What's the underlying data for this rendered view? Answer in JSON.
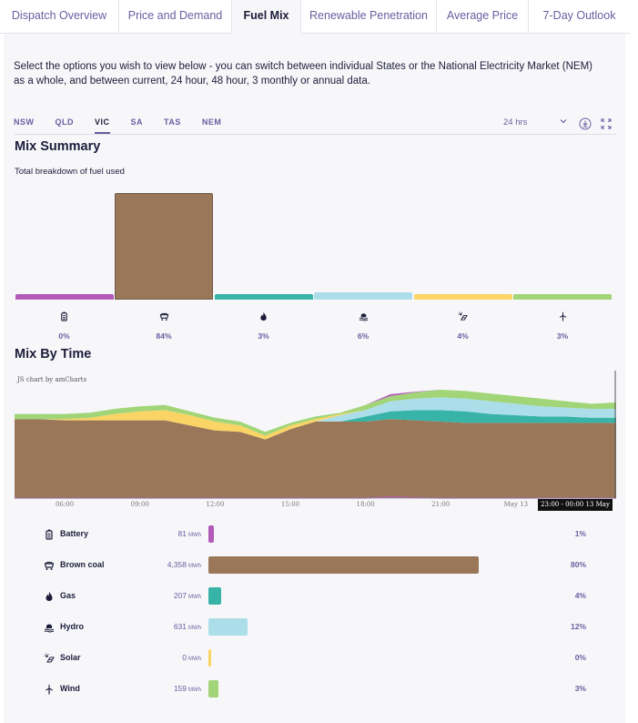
{
  "tabs": [
    {
      "label": "Dispatch Overview",
      "active": false
    },
    {
      "label": "Price and Demand",
      "active": false
    },
    {
      "label": "Fuel Mix",
      "active": true
    },
    {
      "label": "Renewable Penetration",
      "active": false
    },
    {
      "label": "Average Price",
      "active": false
    },
    {
      "label": "7-Day Outlook",
      "active": false
    }
  ],
  "intro": "Select the options you wish to view below - you can switch between individual States or the National Electricity Market (NEM) as a whole, and between current, 24 hour, 48 hour, 3 monthly or annual data.",
  "states": [
    {
      "label": "NSW",
      "active": false
    },
    {
      "label": "QLD",
      "active": false
    },
    {
      "label": "VIC",
      "active": true
    },
    {
      "label": "SA",
      "active": false
    },
    {
      "label": "TAS",
      "active": false
    },
    {
      "label": "NEM",
      "active": false
    }
  ],
  "range": {
    "selected": "24 hrs",
    "chevron_icon": "chevron-down-icon"
  },
  "toolbar": {
    "download_icon": "download-icon",
    "expand_icon": "expand-icon"
  },
  "mix_summary": {
    "title": "Mix Summary",
    "subtitle": "Total breakdown of fuel used",
    "colors": [
      "#b25bb8",
      "#9a7758",
      "#38b3a7",
      "#acdeea",
      "#fad464",
      "#a1d577"
    ],
    "chart_data": {
      "type": "bar",
      "categories": [
        "Battery",
        "Brown coal",
        "Gas",
        "Hydro",
        "Solar",
        "Wind"
      ],
      "values": [
        0,
        84,
        3,
        6,
        4,
        3
      ],
      "value_labels": [
        "0%",
        "84%",
        "3%",
        "6%",
        "4%",
        "3%"
      ],
      "ylim": [
        0,
        84
      ],
      "legend": "none"
    },
    "icons": [
      "battery-icon",
      "brown-coal-icon",
      "gas-icon",
      "hydro-icon",
      "solar-icon",
      "wind-icon"
    ]
  },
  "mix_by_time": {
    "title": "Mix By Time",
    "credit": "JS chart by amCharts",
    "tooltip": "23:00 - 00:00 13 May",
    "colors": {
      "Battery": "#b25bb8",
      "Brown coal": "#9a7758",
      "Gas": "#38b3a7",
      "Hydro": "#acdeea",
      "Solar": "#fad464",
      "Wind": "#a1d577"
    },
    "chart_data": {
      "type": "area",
      "stacked": true,
      "x": [
        "04:00",
        "05:00",
        "06:00",
        "07:00",
        "08:00",
        "09:00",
        "10:00",
        "11:00",
        "12:00",
        "13:00",
        "14:00",
        "15:00",
        "16:00",
        "17:00",
        "18:00",
        "19:00",
        "20:00",
        "21:00",
        "22:00",
        "23:00",
        "00:00",
        "01:00",
        "02:00",
        "03:00",
        "04:00"
      ],
      "x_tick_labels": [
        "06:00",
        "09:00",
        "12:00",
        "15:00",
        "18:00",
        "21:00",
        "May 13"
      ],
      "ylabel": "",
      "ylim": [
        0,
        100
      ],
      "grid": false,
      "legend": "none",
      "series": [
        {
          "name": "Battery",
          "values": [
            0,
            0,
            0,
            0,
            0,
            0,
            0,
            0,
            0,
            0,
            0,
            0,
            0,
            0,
            0,
            1.5,
            0.5,
            0,
            0,
            0,
            0,
            0,
            0,
            0,
            0
          ]
        },
        {
          "name": "Brown coal",
          "values": [
            62,
            62,
            61,
            61,
            61,
            61,
            61,
            57,
            53,
            52,
            46,
            54,
            60,
            60,
            60,
            62,
            61,
            60,
            59,
            59,
            59,
            59,
            59,
            59,
            59
          ]
        },
        {
          "name": "Gas",
          "values": [
            0,
            0,
            0,
            0,
            0,
            0,
            0,
            0,
            0,
            0,
            0,
            0,
            0,
            0,
            4,
            6,
            8,
            9,
            9,
            7,
            6,
            5,
            5,
            4,
            4
          ]
        },
        {
          "name": "Hydro",
          "values": [
            0,
            0,
            0,
            0,
            0,
            0,
            0,
            0,
            0,
            0,
            0,
            0,
            0,
            5,
            5,
            8,
            9,
            10,
            10,
            10,
            9,
            8,
            7,
            7,
            7
          ]
        },
        {
          "name": "Solar",
          "values": [
            0,
            0,
            1,
            2,
            5,
            7,
            8,
            8,
            7,
            5,
            3,
            3,
            2,
            1,
            0,
            0,
            0,
            0,
            0,
            0,
            0,
            0,
            0,
            0,
            0
          ]
        },
        {
          "name": "Wind",
          "values": [
            4,
            4,
            4,
            4,
            4,
            4,
            4,
            3,
            3,
            3,
            3,
            2,
            2,
            1,
            4,
            4,
            5,
            6,
            6,
            6,
            6,
            6,
            5,
            4,
            5
          ]
        }
      ]
    }
  },
  "breakdown": [
    {
      "name": "Battery",
      "icon": "battery-icon",
      "value": "81",
      "unit": "MWh",
      "pct": "1%",
      "share": 0.019,
      "color": "#b25bb8"
    },
    {
      "name": "Brown coal",
      "icon": "brown-coal-icon",
      "value": "4,358",
      "unit": "MWh",
      "pct": "80%",
      "share": 1.0,
      "color": "#9a7758"
    },
    {
      "name": "Gas",
      "icon": "gas-icon",
      "value": "207",
      "unit": "MWh",
      "pct": "4%",
      "share": 0.047,
      "color": "#38b3a7"
    },
    {
      "name": "Hydro",
      "icon": "hydro-icon",
      "value": "631",
      "unit": "MWh",
      "pct": "12%",
      "share": 0.145,
      "color": "#acdeea"
    },
    {
      "name": "Solar",
      "icon": "solar-icon",
      "value": "0",
      "unit": "MWh",
      "pct": "0%",
      "share": 0.0,
      "color": "#fad464"
    },
    {
      "name": "Wind",
      "icon": "wind-icon",
      "value": "159",
      "unit": "MWh",
      "pct": "3%",
      "share": 0.036,
      "color": "#a1d577"
    }
  ]
}
